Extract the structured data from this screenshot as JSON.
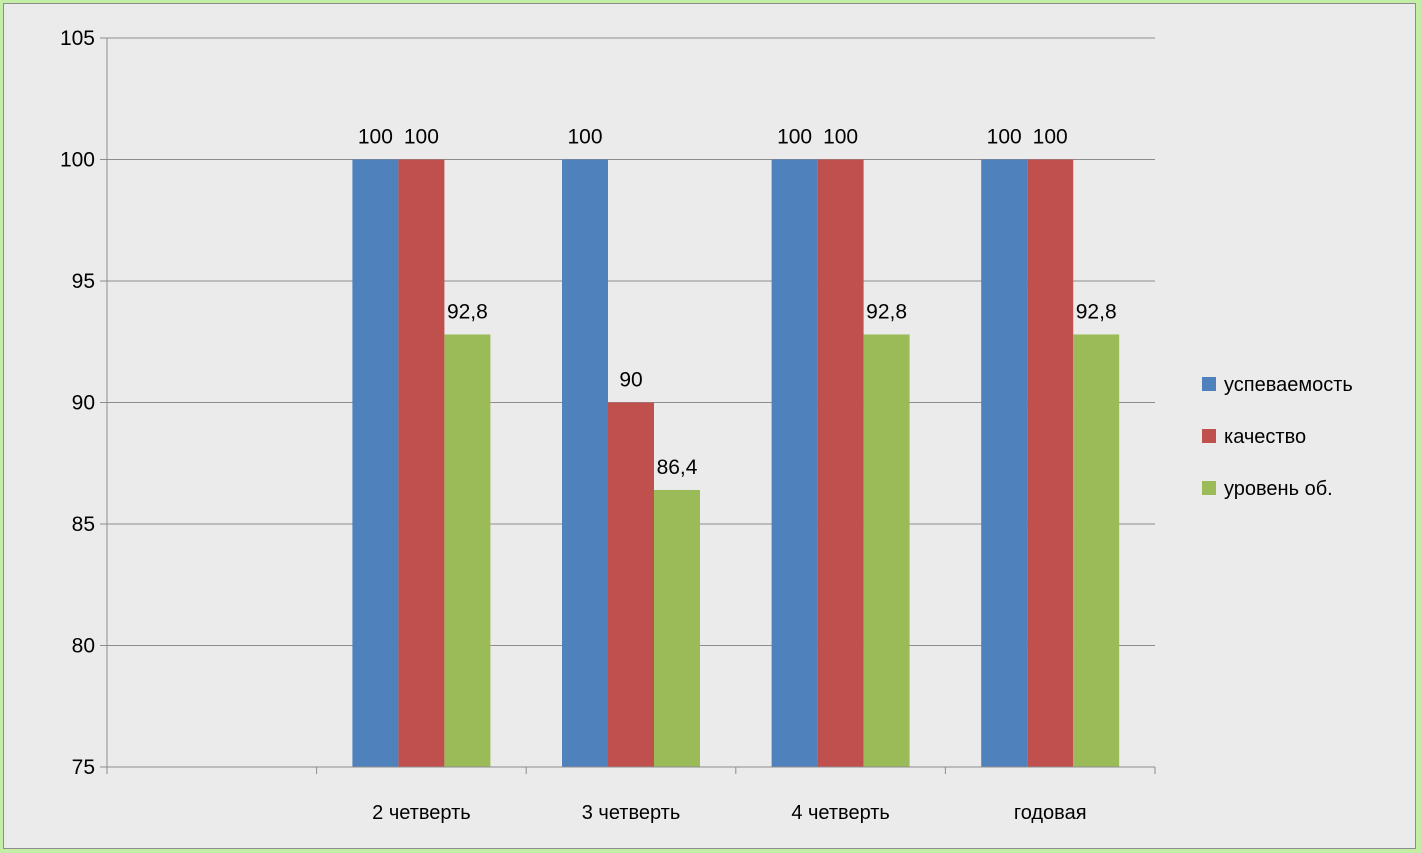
{
  "chart_data": {
    "type": "bar",
    "categories": [
      "",
      "2 четверть",
      "3 четверть",
      "4 четверть",
      "годовая"
    ],
    "series": [
      {
        "name": "успеваемость",
        "color": "#4f81bd",
        "values": [
          null,
          100,
          100,
          100,
          100
        ],
        "labels": [
          "",
          "100",
          "100",
          "100",
          "100"
        ]
      },
      {
        "name": "качество",
        "color": "#c0504d",
        "values": [
          null,
          100,
          90,
          100,
          100
        ],
        "labels": [
          "",
          "100",
          "90",
          "100",
          "100"
        ]
      },
      {
        "name": "уровень об.",
        "color": "#9bbb59",
        "values": [
          null,
          92.8,
          86.4,
          92.8,
          92.8
        ],
        "labels": [
          "",
          "92,8",
          "86,4",
          "92,8",
          "92,8"
        ]
      }
    ],
    "yticks": [
      "75",
      "80",
      "85",
      "90",
      "95",
      "100",
      "105"
    ],
    "ylim": [
      75,
      105
    ],
    "grid": true,
    "legend_position": "right",
    "title": "",
    "xlabel": "",
    "ylabel": ""
  }
}
